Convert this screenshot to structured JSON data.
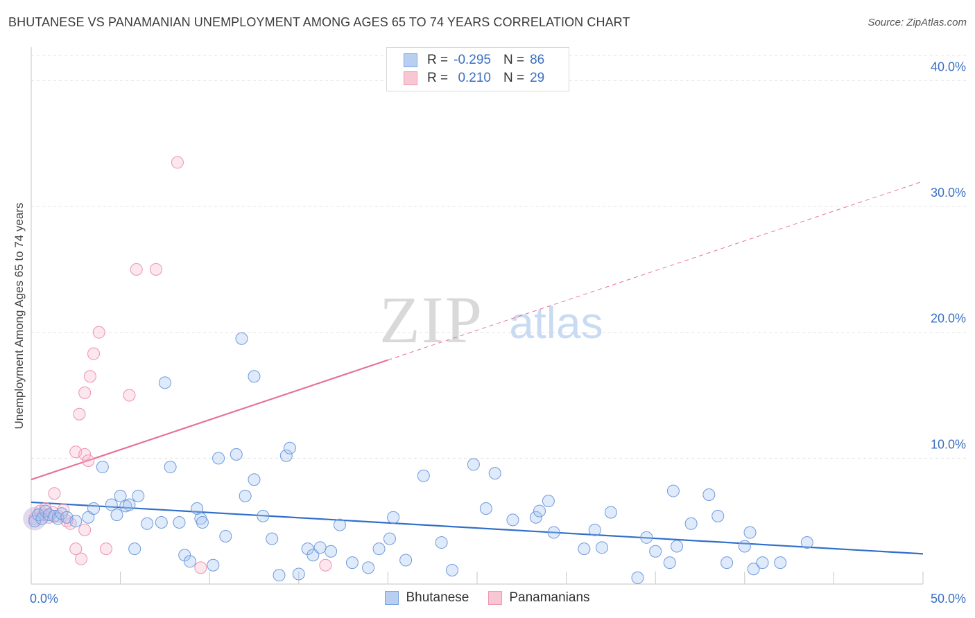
{
  "title": "BHUTANESE VS PANAMANIAN UNEMPLOYMENT AMONG AGES 65 TO 74 YEARS CORRELATION CHART",
  "source": "Source: ZipAtlas.com",
  "watermark": {
    "zip": "ZIP",
    "atlas": "atlas"
  },
  "legend": {
    "r_label": "R =",
    "n_label": "N =",
    "series": [
      {
        "name": "Bhutanese",
        "r": "-0.295",
        "n": "86",
        "fill": "#b9cff2",
        "stroke": "#7aa3e0"
      },
      {
        "name": "Panamanians",
        "r": "0.210",
        "n": "29",
        "fill": "#f9c6d4",
        "stroke": "#ee98b2"
      }
    ]
  },
  "colors": {
    "blue_line": "#2f6fc9",
    "pink_line": "#e5729a",
    "blue_point_fill": "rgba(164,196,240,0.35)",
    "blue_point_stroke": "#6e9bdc",
    "pink_point_fill": "rgba(246,186,205,0.35)",
    "pink_point_stroke": "#ec93ae",
    "tick_label": "#3a6fc4",
    "grid": "#e3e3e3"
  },
  "chart_data": {
    "type": "scatter",
    "title": "BHUTANESE VS PANAMANIAN UNEMPLOYMENT AMONG AGES 65 TO 74 YEARS CORRELATION CHART",
    "xlabel": "",
    "ylabel": "Unemployment Among Ages 65 to 74 years",
    "xlim": [
      0,
      50
    ],
    "ylim": [
      0,
      42
    ],
    "x_tick_labels": [
      {
        "value": 0,
        "label": "0.0%"
      },
      {
        "value": 50,
        "label": "50.0%"
      }
    ],
    "y_tick_labels": [
      {
        "value": 10,
        "label": "10.0%"
      },
      {
        "value": 20,
        "label": "20.0%"
      },
      {
        "value": 30,
        "label": "30.0%"
      },
      {
        "value": 40,
        "label": "40.0%"
      }
    ],
    "x_minor_ticks": [
      0,
      5,
      10,
      15,
      20,
      25,
      30,
      35,
      40,
      45,
      50
    ],
    "series": [
      {
        "name": "Bhutanese",
        "r": -0.295,
        "n": 86,
        "trend": {
          "x": [
            0,
            50
          ],
          "y": [
            6.5,
            2.4
          ],
          "style": "solid"
        },
        "points": [
          [
            0.2,
            5.0
          ],
          [
            0.4,
            5.5
          ],
          [
            0.6,
            5.2
          ],
          [
            0.8,
            5.8
          ],
          [
            1.0,
            5.5
          ],
          [
            1.3,
            5.4
          ],
          [
            1.5,
            5.2
          ],
          [
            1.7,
            5.6
          ],
          [
            2.0,
            5.3
          ],
          [
            2.5,
            5.0
          ],
          [
            3.2,
            5.3
          ],
          [
            3.5,
            6.0
          ],
          [
            4.0,
            9.3
          ],
          [
            4.5,
            6.3
          ],
          [
            4.8,
            5.5
          ],
          [
            5.0,
            7.0
          ],
          [
            5.3,
            6.2
          ],
          [
            5.5,
            6.3
          ],
          [
            5.8,
            2.8
          ],
          [
            6.0,
            7.0
          ],
          [
            6.5,
            4.8
          ],
          [
            7.3,
            4.9
          ],
          [
            7.5,
            16.0
          ],
          [
            7.8,
            9.3
          ],
          [
            8.3,
            4.9
          ],
          [
            8.6,
            2.3
          ],
          [
            8.9,
            1.8
          ],
          [
            9.3,
            6.0
          ],
          [
            9.5,
            5.2
          ],
          [
            9.6,
            4.9
          ],
          [
            10.2,
            1.5
          ],
          [
            10.5,
            10.0
          ],
          [
            10.9,
            3.8
          ],
          [
            11.5,
            10.3
          ],
          [
            11.8,
            19.5
          ],
          [
            12.0,
            7.0
          ],
          [
            12.5,
            8.3
          ],
          [
            12.5,
            16.5
          ],
          [
            13.0,
            5.4
          ],
          [
            13.5,
            3.6
          ],
          [
            13.9,
            0.7
          ],
          [
            14.3,
            10.2
          ],
          [
            14.5,
            10.8
          ],
          [
            15.0,
            0.8
          ],
          [
            15.5,
            2.8
          ],
          [
            15.8,
            2.3
          ],
          [
            16.2,
            2.9
          ],
          [
            16.8,
            2.6
          ],
          [
            17.3,
            4.7
          ],
          [
            18.0,
            1.7
          ],
          [
            18.9,
            1.3
          ],
          [
            19.5,
            2.8
          ],
          [
            20.1,
            3.6
          ],
          [
            20.3,
            5.3
          ],
          [
            21.0,
            1.9
          ],
          [
            22.0,
            8.6
          ],
          [
            23.0,
            3.3
          ],
          [
            23.6,
            1.1
          ],
          [
            24.8,
            9.5
          ],
          [
            25.5,
            6.0
          ],
          [
            26.0,
            8.8
          ],
          [
            27.0,
            5.1
          ],
          [
            28.3,
            5.3
          ],
          [
            28.5,
            5.8
          ],
          [
            29.0,
            6.6
          ],
          [
            29.3,
            4.1
          ],
          [
            31.0,
            2.8
          ],
          [
            31.6,
            4.3
          ],
          [
            32.0,
            2.9
          ],
          [
            32.5,
            5.7
          ],
          [
            34.0,
            0.5
          ],
          [
            34.5,
            3.7
          ],
          [
            35.0,
            2.6
          ],
          [
            35.8,
            1.7
          ],
          [
            36.0,
            7.4
          ],
          [
            36.2,
            3.0
          ],
          [
            37.0,
            4.8
          ],
          [
            38.0,
            7.1
          ],
          [
            38.5,
            5.4
          ],
          [
            39.0,
            1.7
          ],
          [
            40.0,
            3.0
          ],
          [
            40.3,
            4.1
          ],
          [
            40.5,
            1.2
          ],
          [
            41.0,
            1.7
          ],
          [
            42.0,
            1.7
          ],
          [
            43.5,
            3.3
          ]
        ]
      },
      {
        "name": "Panamanians",
        "r": 0.21,
        "n": 29,
        "trend": {
          "x": [
            0,
            20
          ],
          "y": [
            8.3,
            17.8
          ],
          "style": "solid",
          "extension": {
            "x": [
              20,
              50
            ],
            "y": [
              17.8,
              32.0
            ],
            "style": "dashed"
          }
        },
        "points": [
          [
            0.2,
            5.2
          ],
          [
            0.5,
            5.8
          ],
          [
            0.8,
            6.0
          ],
          [
            1.0,
            5.3
          ],
          [
            1.2,
            5.7
          ],
          [
            1.5,
            5.4
          ],
          [
            1.8,
            5.9
          ],
          [
            2.0,
            5.0
          ],
          [
            2.2,
            4.8
          ],
          [
            1.3,
            7.2
          ],
          [
            2.5,
            2.8
          ],
          [
            3.0,
            4.3
          ],
          [
            2.8,
            2.0
          ],
          [
            2.5,
            10.5
          ],
          [
            3.0,
            10.3
          ],
          [
            3.2,
            9.8
          ],
          [
            2.7,
            13.5
          ],
          [
            3.0,
            15.2
          ],
          [
            3.3,
            16.5
          ],
          [
            3.5,
            18.3
          ],
          [
            3.8,
            20.0
          ],
          [
            4.2,
            2.8
          ],
          [
            5.5,
            15.0
          ],
          [
            5.9,
            25.0
          ],
          [
            7.0,
            25.0
          ],
          [
            8.2,
            33.5
          ],
          [
            9.5,
            1.3
          ],
          [
            16.5,
            1.5
          ],
          [
            0.7,
            5.5
          ]
        ]
      }
    ]
  }
}
